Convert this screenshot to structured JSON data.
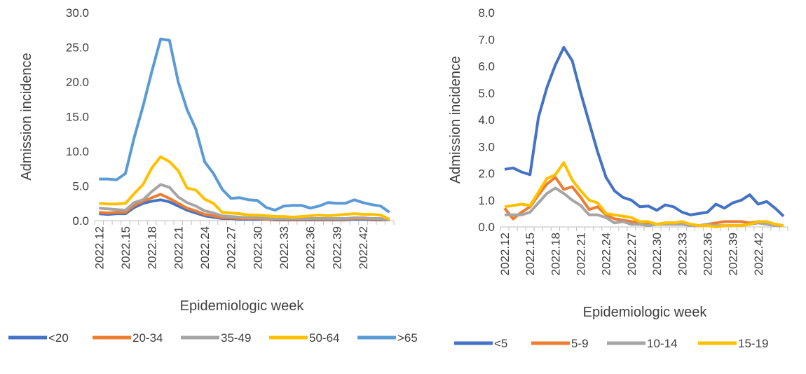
{
  "chart_data": [
    {
      "type": "line",
      "y_label": "Admission incidence",
      "x_label": "Epidemiologic week",
      "categories": [
        "2022.12",
        null,
        null,
        "2022.15",
        null,
        null,
        "2022.18",
        null,
        null,
        "2022.21",
        null,
        null,
        "2022.24",
        null,
        null,
        "2022.27",
        null,
        null,
        "2022.30",
        null,
        null,
        "2022.33",
        null,
        null,
        "2022.36",
        null,
        null,
        "2022.39",
        null,
        null,
        "2022.42",
        null,
        null,
        null
      ],
      "ylim": [
        0,
        30
      ],
      "yticks": [
        {
          "value": 0,
          "label": "0.0"
        },
        {
          "value": 5,
          "label": "5.0"
        },
        {
          "value": 10,
          "label": "10.0"
        },
        {
          "value": 15,
          "label": "15.0"
        },
        {
          "value": 20,
          "label": "20.0"
        },
        {
          "value": 25,
          "label": "25.0"
        },
        {
          "value": 30,
          "label": "30.0"
        }
      ],
      "legend": "bottom",
      "series": [
        {
          "name": "<20",
          "color": "#4472c4",
          "values": [
            1.0,
            0.9,
            1.0,
            1.0,
            1.9,
            2.5,
            2.8,
            3.0,
            2.7,
            2.1,
            1.5,
            1.1,
            0.7,
            0.5,
            0.3,
            0.3,
            0.2,
            0.2,
            0.2,
            0.2,
            0.1,
            0.1,
            0.1,
            0.1,
            0.1,
            0.1,
            0.1,
            0.1,
            0.1,
            0.2,
            0.2,
            0.1,
            0.1,
            0.1
          ]
        },
        {
          "name": "20-34",
          "color": "#ed7d31",
          "values": [
            1.2,
            1.1,
            1.2,
            1.2,
            2.2,
            2.8,
            3.3,
            3.8,
            3.2,
            2.5,
            1.8,
            1.4,
            0.9,
            0.7,
            0.4,
            0.4,
            0.3,
            0.3,
            0.3,
            0.2,
            0.2,
            0.2,
            0.2,
            0.2,
            0.2,
            0.2,
            0.2,
            0.2,
            0.2,
            0.3,
            0.3,
            0.2,
            0.2,
            0.1
          ]
        },
        {
          "name": "35-49",
          "color": "#a5a5a5",
          "values": [
            1.8,
            1.7,
            1.6,
            1.5,
            2.6,
            3.0,
            4.2,
            5.2,
            4.8,
            3.4,
            2.6,
            2.1,
            1.4,
            1.1,
            0.7,
            0.6,
            0.5,
            0.4,
            0.4,
            0.3,
            0.3,
            0.3,
            0.3,
            0.3,
            0.3,
            0.3,
            0.3,
            0.3,
            0.3,
            0.4,
            0.4,
            0.3,
            0.3,
            0.1
          ]
        },
        {
          "name": "50-64",
          "color": "#ffc000",
          "values": [
            2.5,
            2.4,
            2.4,
            2.5,
            3.9,
            5.2,
            7.6,
            9.2,
            8.5,
            7.2,
            4.7,
            4.4,
            3.1,
            2.5,
            1.2,
            1.1,
            1.0,
            0.8,
            0.8,
            0.7,
            0.6,
            0.6,
            0.5,
            0.6,
            0.7,
            0.8,
            0.7,
            0.8,
            0.9,
            1.0,
            0.9,
            0.9,
            0.8,
            0.2
          ]
        },
        {
          "name": ">65",
          "color": "#5b9bd5",
          "values": [
            6.0,
            6.0,
            5.9,
            6.8,
            12.0,
            16.5,
            21.5,
            26.2,
            26.0,
            20.0,
            16.0,
            13.2,
            8.5,
            6.8,
            4.5,
            3.2,
            3.3,
            3.0,
            2.9,
            1.9,
            1.5,
            2.1,
            2.2,
            2.2,
            1.8,
            2.1,
            2.6,
            2.5,
            2.5,
            3.0,
            2.6,
            2.3,
            2.1,
            1.2
          ]
        }
      ]
    },
    {
      "type": "line",
      "y_label": "Admission incidence",
      "x_label": "Epidemiologic week",
      "categories": [
        "2022.12",
        null,
        null,
        "2022.15",
        null,
        null,
        "2022.18",
        null,
        null,
        "2022.21",
        null,
        null,
        "2022.24",
        null,
        null,
        "2022.27",
        null,
        null,
        "2022.30",
        null,
        null,
        "2022.33",
        null,
        null,
        "2022.36",
        null,
        null,
        "2022.39",
        null,
        null,
        "2022.42",
        null,
        null,
        null
      ],
      "ylim": [
        0,
        8
      ],
      "yticks": [
        {
          "value": 0,
          "label": "0.0"
        },
        {
          "value": 1,
          "label": "1.0"
        },
        {
          "value": 2,
          "label": "2.0"
        },
        {
          "value": 3,
          "label": "3.0"
        },
        {
          "value": 4,
          "label": "4.0"
        },
        {
          "value": 5,
          "label": "5.0"
        },
        {
          "value": 6,
          "label": "6.0"
        },
        {
          "value": 7,
          "label": "7.0"
        },
        {
          "value": 8,
          "label": "8.0"
        }
      ],
      "legend": "bottom",
      "series": [
        {
          "name": "<5",
          "color": "#4472c4",
          "values": [
            2.15,
            2.2,
            2.05,
            1.95,
            4.1,
            5.2,
            6.05,
            6.7,
            6.2,
            5.0,
            3.9,
            2.8,
            1.85,
            1.35,
            1.1,
            1.0,
            0.75,
            0.78,
            0.62,
            0.82,
            0.75,
            0.55,
            0.45,
            0.5,
            0.55,
            0.85,
            0.7,
            0.9,
            1.0,
            1.2,
            0.85,
            0.95,
            0.7,
            0.4
          ]
        },
        {
          "name": "5-9",
          "color": "#ed7d31",
          "values": [
            0.7,
            0.3,
            0.55,
            0.75,
            1.2,
            1.6,
            1.85,
            1.4,
            1.5,
            1.1,
            0.65,
            0.75,
            0.45,
            0.3,
            0.25,
            0.2,
            0.15,
            0.15,
            0.1,
            0.15,
            0.15,
            0.15,
            0.1,
            0.05,
            0.1,
            0.15,
            0.2,
            0.2,
            0.2,
            0.15,
            0.2,
            0.15,
            0.1,
            0.05
          ]
        },
        {
          "name": "10-14",
          "color": "#a5a5a5",
          "values": [
            0.45,
            0.45,
            0.45,
            0.55,
            0.9,
            1.25,
            1.45,
            1.25,
            1.0,
            0.8,
            0.45,
            0.45,
            0.35,
            0.15,
            0.2,
            0.1,
            0.1,
            0.05,
            0.1,
            0.1,
            0.1,
            0.1,
            0.05,
            0.05,
            0.1,
            0.05,
            0.05,
            0.05,
            0.05,
            0.1,
            0.15,
            0.1,
            0.05,
            0.05
          ]
        },
        {
          "name": "15-19",
          "color": "#ffc000",
          "values": [
            0.75,
            0.8,
            0.85,
            0.8,
            1.3,
            1.8,
            1.95,
            2.4,
            1.75,
            1.35,
            1.0,
            0.9,
            0.5,
            0.45,
            0.4,
            0.35,
            0.2,
            0.2,
            0.1,
            0.15,
            0.15,
            0.2,
            0.1,
            0.05,
            0.05,
            0.0,
            0.05,
            0.05,
            0.05,
            0.1,
            0.2,
            0.2,
            0.1,
            0.05
          ]
        }
      ]
    }
  ]
}
